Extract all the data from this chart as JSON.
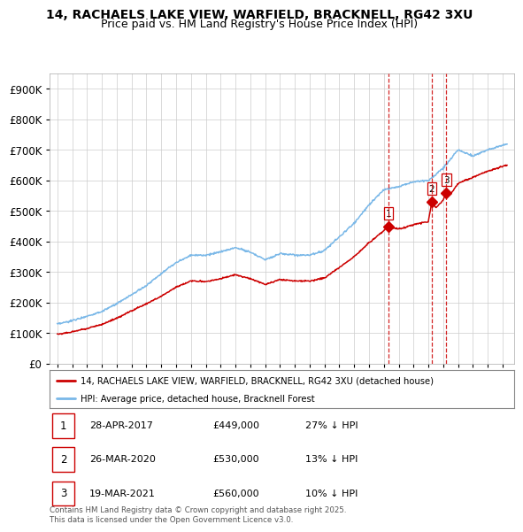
{
  "title": "14, RACHAELS LAKE VIEW, WARFIELD, BRACKNELL, RG42 3XU",
  "subtitle": "Price paid vs. HM Land Registry's House Price Index (HPI)",
  "legend_line1": "14, RACHAELS LAKE VIEW, WARFIELD, BRACKNELL, RG42 3XU (detached house)",
  "legend_line2": "HPI: Average price, detached house, Bracknell Forest",
  "footer": "Contains HM Land Registry data © Crown copyright and database right 2025.\nThis data is licensed under the Open Government Licence v3.0.",
  "transactions": [
    {
      "num": 1,
      "date": "28-APR-2017",
      "price": "£449,000",
      "hpi": "27% ↓ HPI",
      "year": 2017.32
    },
    {
      "num": 2,
      "date": "26-MAR-2020",
      "price": "£530,000",
      "hpi": "13% ↓ HPI",
      "year": 2020.23
    },
    {
      "num": 3,
      "date": "19-MAR-2021",
      "price": "£560,000",
      "hpi": "10% ↓ HPI",
      "year": 2021.21
    }
  ],
  "transaction_prices": [
    449000,
    530000,
    560000
  ],
  "hpi_color": "#7ab8e8",
  "price_color": "#cc0000",
  "dashed_color": "#cc0000",
  "ylim": [
    0,
    950000
  ],
  "xlim_start": 1994.5,
  "xlim_end": 2025.8,
  "background_color": "#ffffff",
  "grid_color": "#cccccc",
  "title_fontsize": 10,
  "subtitle_fontsize": 9
}
